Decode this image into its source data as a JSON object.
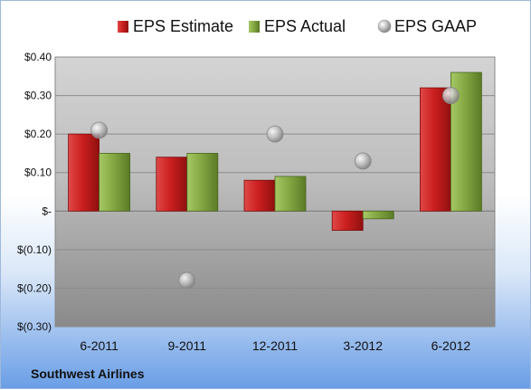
{
  "company_label": "Southwest Airlines",
  "chart_data": {
    "type": "bar",
    "categories": [
      "6-2011",
      "9-2011",
      "12-2011",
      "3-2012",
      "6-2012"
    ],
    "series": [
      {
        "name": "EPS Estimate",
        "kind": "bar",
        "color": "#cc1f1f",
        "values": [
          0.2,
          0.14,
          0.08,
          -0.05,
          0.32
        ]
      },
      {
        "name": "EPS Actual",
        "kind": "bar",
        "color": "#7fa33a",
        "values": [
          0.15,
          0.15,
          0.09,
          -0.02,
          0.36
        ]
      },
      {
        "name": "EPS GAAP",
        "kind": "marker",
        "color": "#a8a8a8",
        "values": [
          0.21,
          -0.18,
          0.2,
          0.13,
          0.3
        ]
      }
    ],
    "ylim": [
      -0.3,
      0.4
    ],
    "yticks": [
      0.4,
      0.3,
      0.2,
      0.1,
      0,
      -0.1,
      -0.2,
      -0.3
    ],
    "ytick_labels": [
      "$0.40",
      "$0.30",
      "$0.20",
      "$0.10",
      "$-",
      "$(0.10)",
      "$(0.20)",
      "$(0.30)"
    ],
    "legend_position": "top",
    "grid": true
  }
}
